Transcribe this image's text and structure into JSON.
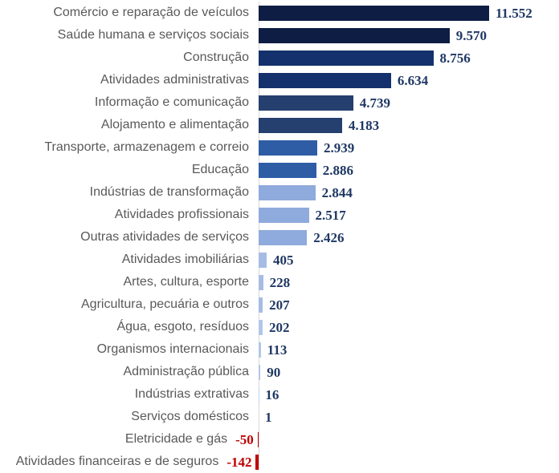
{
  "chart_data": {
    "type": "bar",
    "orientation": "horizontal",
    "title": "",
    "xlabel": "",
    "ylabel": "",
    "grid": false,
    "legend": false,
    "xlim": [
      -142,
      11552
    ],
    "categories": [
      "Comércio e reparação de veículos",
      "Saúde humana e serviços sociais",
      "Construção",
      "Atividades administrativas",
      "Informação e comunicação",
      "Alojamento e alimentação",
      "Transporte, armazenagem e correio",
      "Educação",
      "Indústrias de transformação",
      "Atividades profissionais",
      "Outras atividades de serviços",
      "Atividades imobiliárias",
      "Artes, cultura, esporte",
      "Agricultura, pecuária e outros",
      "Água, esgoto, resíduos",
      "Organismos internacionais",
      "Administração pública",
      "Indústrias extrativas",
      "Serviços domésticos",
      "Eletricidade e gás",
      "Atividades financeiras e de seguros"
    ],
    "values": [
      11552,
      9570,
      8756,
      6634,
      4739,
      4183,
      2939,
      2886,
      2844,
      2517,
      2426,
      405,
      228,
      207,
      202,
      113,
      90,
      16,
      1,
      -50,
      -142
    ],
    "value_labels": [
      "11.552",
      "9.570",
      "8.756",
      "6.634",
      "4.739",
      "4.183",
      "2.939",
      "2.886",
      "2.844",
      "2.517",
      "2.426",
      "405",
      "228",
      "207",
      "202",
      "113",
      "90",
      "16",
      "1",
      "-50",
      "-142"
    ],
    "bar_colors": [
      "#0E1D43",
      "#0E1D43",
      "#14316D",
      "#14316D",
      "#253F6E",
      "#253F6E",
      "#2E5DA6",
      "#2E5DA6",
      "#8FAADC",
      "#8FAADC",
      "#8FAADC",
      "#A6BCE3",
      "#A6BCE3",
      "#A6BCE3",
      "#B3C6E8",
      "#B3C6E8",
      "#B3C6E8",
      "#C0D0EC",
      "#C0D0EC",
      "#C00000",
      "#C00000"
    ],
    "label_color": "#595959",
    "value_color": "#1F3864",
    "negative_value_color": "#C00000",
    "axis_line_color": "#D8D8D8",
    "background": "#FFFFFF"
  }
}
